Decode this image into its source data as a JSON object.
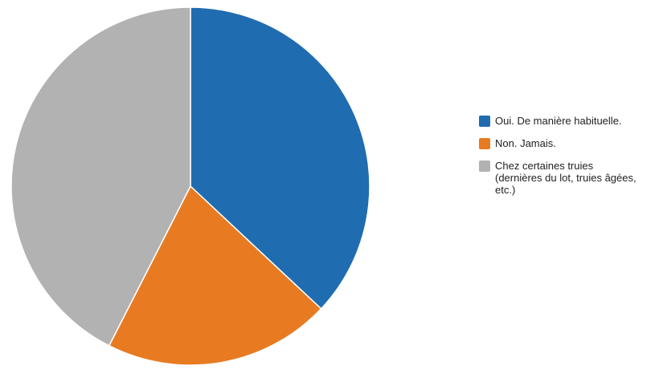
{
  "chart_data": {
    "type": "pie",
    "title": "",
    "legend_position": "right",
    "slices": [
      {
        "label": "Oui. De manière habituelle.",
        "value": 37.0,
        "color": "#1f6cb0"
      },
      {
        "label": "Non. Jamais.",
        "value": 20.5,
        "color": "#e87b22"
      },
      {
        "label": "Chez certaines truies (dernières du lot, truies âgées, etc.)",
        "value": 42.5,
        "color": "#b2b2b2"
      }
    ]
  }
}
